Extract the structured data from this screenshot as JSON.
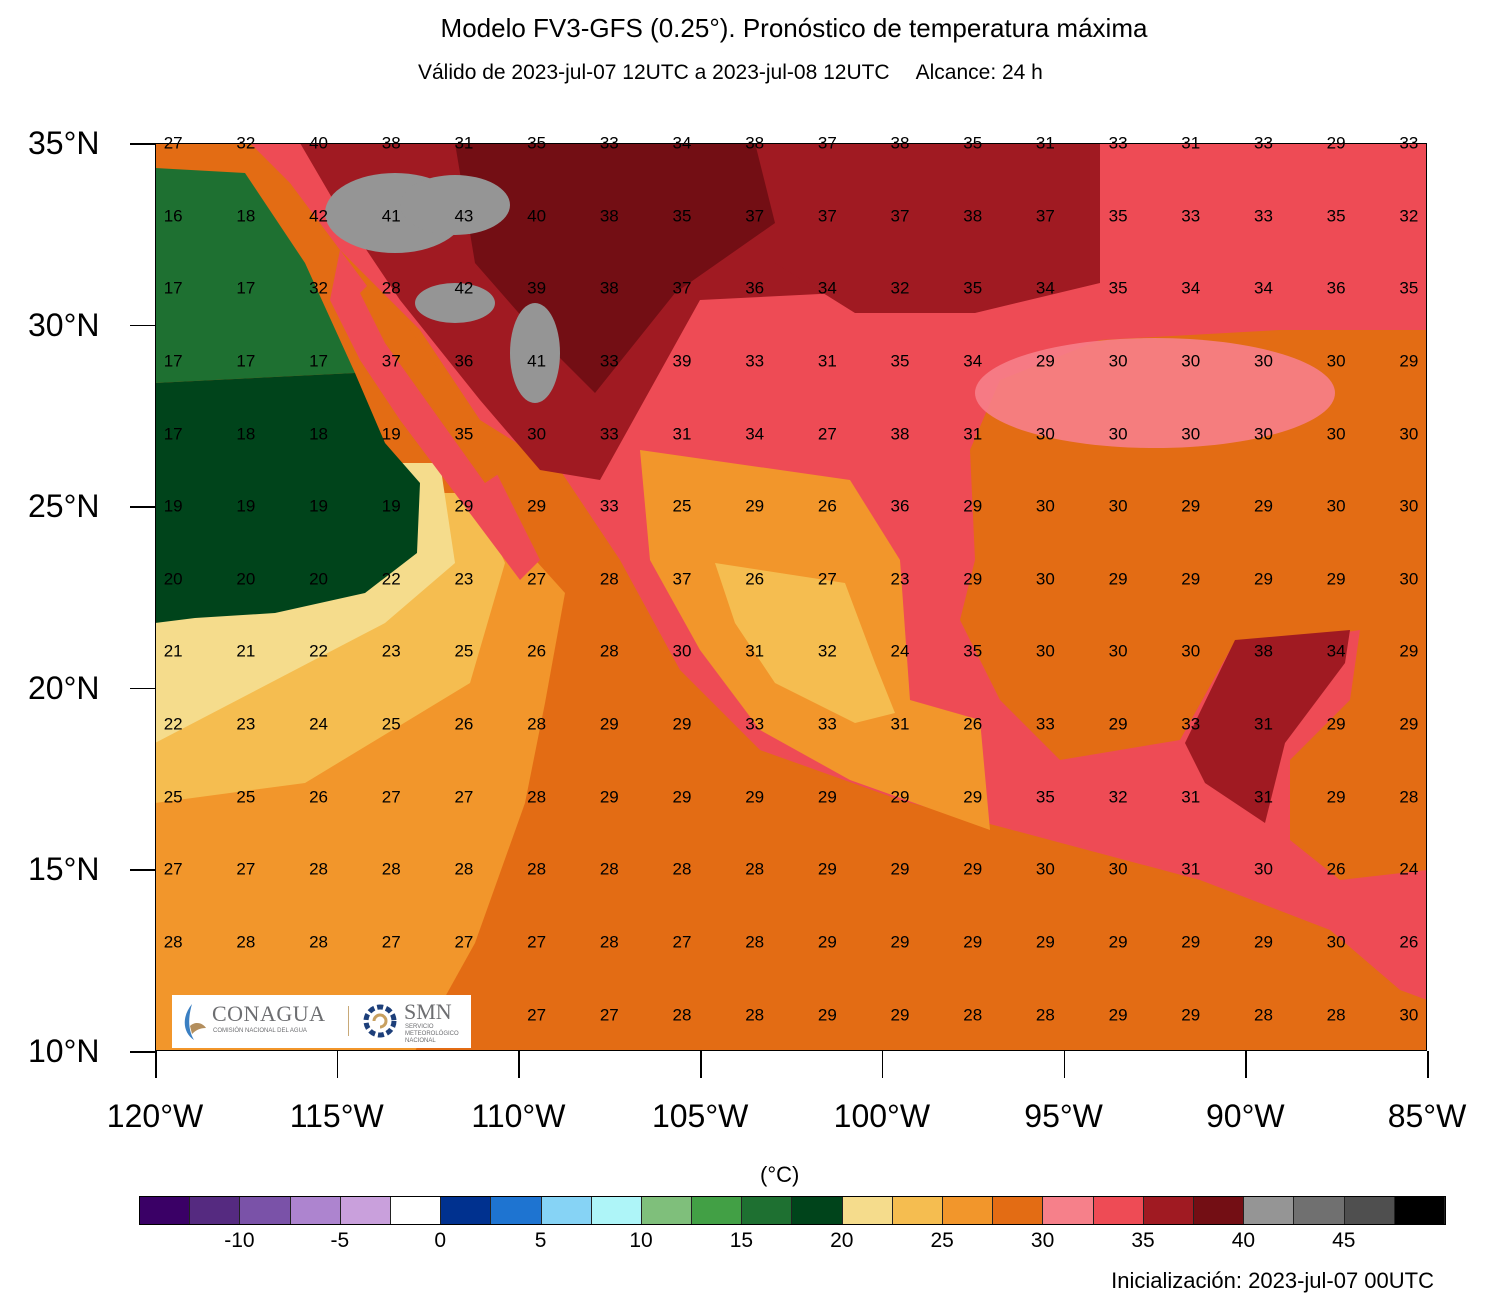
{
  "header": {
    "title": "Modelo FV3-GFS (0.25°). Pronóstico de temperatura máxima",
    "valid": "Válido de 2023-jul-07 12UTC a 2023-jul-08 12UTC",
    "range": "Alcance: 24 h"
  },
  "axes": {
    "lat_labels": [
      "35°N",
      "30°N",
      "25°N",
      "20°N",
      "15°N",
      "10°N"
    ],
    "lon_labels": [
      "120°W",
      "115°W",
      "110°W",
      "105°W",
      "100°W",
      "95°W",
      "90°W",
      "85°W"
    ],
    "lat_range": [
      10,
      35
    ],
    "lon_range": [
      -120,
      -85
    ]
  },
  "grid_values": {
    "lons": [
      -119.5,
      -117.5,
      -115.5,
      -113.5,
      -111.5,
      -109.5,
      -107.5,
      -105.5,
      -103.5,
      -101.5,
      -99.5,
      -97.5,
      -95.5,
      -93.5,
      -91.5,
      -89.5,
      -87.5,
      -85.5
    ],
    "lats": [
      35,
      33,
      31,
      29,
      27,
      25,
      23,
      21,
      19,
      17,
      15,
      13,
      11
    ],
    "rows": [
      [
        27,
        32,
        40,
        38,
        31,
        35,
        33,
        34,
        38,
        37,
        38,
        35,
        31,
        33,
        31,
        33,
        29,
        33
      ],
      [
        16,
        18,
        42,
        41,
        43,
        40,
        38,
        35,
        37,
        37,
        37,
        38,
        37,
        35,
        33,
        33,
        35,
        32
      ],
      [
        17,
        17,
        32,
        28,
        42,
        39,
        38,
        37,
        36,
        34,
        32,
        35,
        34,
        35,
        34,
        34,
        36,
        35
      ],
      [
        17,
        17,
        17,
        37,
        36,
        41,
        33,
        39,
        33,
        31,
        35,
        34,
        29,
        30,
        30,
        30,
        30,
        29
      ],
      [
        17,
        18,
        18,
        19,
        35,
        30,
        33,
        31,
        34,
        27,
        38,
        31,
        30,
        30,
        30,
        30,
        30,
        30
      ],
      [
        19,
        19,
        19,
        19,
        29,
        29,
        33,
        25,
        29,
        26,
        36,
        29,
        30,
        30,
        29,
        29,
        30,
        30
      ],
      [
        20,
        20,
        20,
        22,
        23,
        27,
        28,
        37,
        26,
        27,
        23,
        29,
        30,
        29,
        29,
        29,
        29,
        30
      ],
      [
        21,
        21,
        22,
        23,
        25,
        26,
        28,
        30,
        31,
        32,
        24,
        35,
        30,
        30,
        30,
        38,
        34,
        29
      ],
      [
        22,
        23,
        24,
        25,
        26,
        28,
        29,
        29,
        33,
        33,
        31,
        26,
        33,
        29,
        33,
        31,
        29,
        29
      ],
      [
        25,
        25,
        26,
        27,
        27,
        28,
        29,
        29,
        29,
        29,
        29,
        29,
        35,
        32,
        31,
        31,
        29,
        28
      ],
      [
        27,
        27,
        28,
        28,
        28,
        28,
        28,
        28,
        28,
        29,
        29,
        29,
        30,
        30,
        31,
        30,
        26,
        24
      ],
      [
        28,
        28,
        28,
        27,
        27,
        27,
        28,
        27,
        28,
        29,
        29,
        29,
        29,
        29,
        29,
        29,
        30,
        26
      ],
      [
        null,
        null,
        null,
        null,
        null,
        27,
        27,
        28,
        28,
        29,
        29,
        28,
        28,
        29,
        29,
        28,
        28,
        30
      ]
    ]
  },
  "colorbar": {
    "units": "(°C)",
    "min": -15,
    "step": 2.5,
    "colors": [
      "#3a0066",
      "#552a80",
      "#7a52a8",
      "#ad84cf",
      "#c9a0dc",
      "#ffffff",
      "#00318f",
      "#1e74d1",
      "#86d3f5",
      "#aef5f8",
      "#7fbf7b",
      "#42a045",
      "#1e7031",
      "#00441b",
      "#f5dc8c",
      "#f5bd50",
      "#f2962b",
      "#e36c14",
      "#f6808a",
      "#ee4b55",
      "#a01a22",
      "#730e14",
      "#959595",
      "#707070",
      "#4f4f4f",
      "#000000"
    ],
    "labels": [
      "-10",
      "-5",
      "0",
      "5",
      "10",
      "15",
      "20",
      "25",
      "30",
      "35",
      "40",
      "45"
    ]
  },
  "footer": {
    "init": "Inicialización: 2023-jul-07 00UTC"
  },
  "logo": {
    "conagua": "CONAGUA",
    "conagua_sub": "COMISIÓN NACIONAL DEL AGUA",
    "smn": "SMN",
    "smn_sub": "SERVICIO METEOROLÓGICO NACIONAL"
  }
}
